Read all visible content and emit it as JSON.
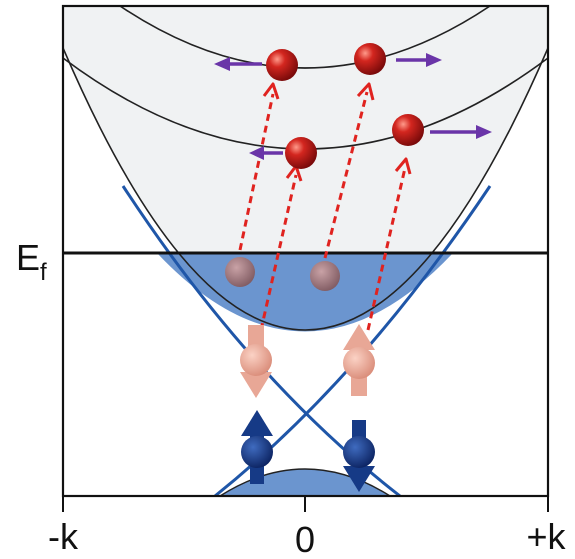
{
  "labels": {
    "fermi_main": "E",
    "fermi_sub": "f",
    "x_left": "-k",
    "x_center": "0",
    "x_right": "+k"
  },
  "colors": {
    "band_fill": "#f0f2f3",
    "filled_states": "#6b95cf",
    "dirac_cone": "#1f56a8",
    "band_line": "#222222",
    "electron": "#c61a1a",
    "hole": "#9a7278",
    "excitation_arrow": "#e0231f",
    "velocity_arrow": "#6a35a8",
    "spin_up_excited": "#e8a796",
    "spin_ground": "#0f2c6e"
  },
  "icons": [
    "electron-sphere-icon",
    "hole-sphere-icon",
    "spin-up-arrow-icon",
    "spin-down-arrow-icon",
    "velocity-arrow-icon"
  ]
}
